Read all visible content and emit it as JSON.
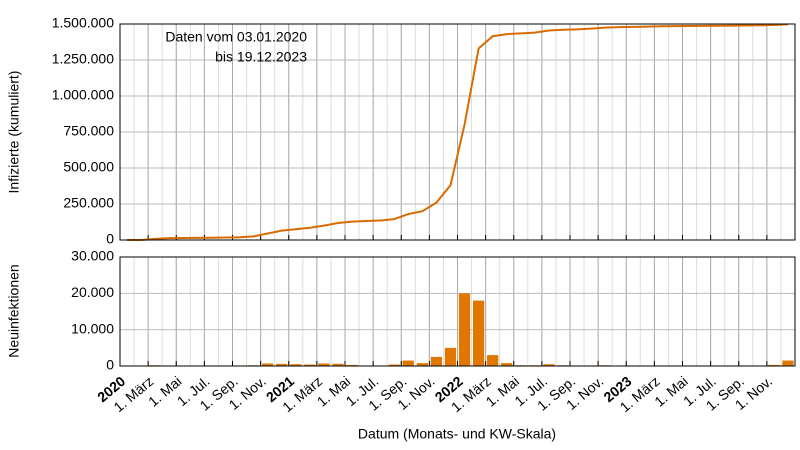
{
  "chart_data": [
    {
      "type": "line",
      "ylabel": "Infizierte (kumuliert)",
      "annotation": [
        "Daten vom 03.01.2020",
        "bis 19.12.2023"
      ],
      "categories": [
        "2020-01",
        "2020-02",
        "2020-03",
        "2020-04",
        "2020-05",
        "2020-06",
        "2020-07",
        "2020-08",
        "2020-09",
        "2020-10",
        "2020-11",
        "2020-12",
        "2021-01",
        "2021-02",
        "2021-03",
        "2021-04",
        "2021-05",
        "2021-06",
        "2021-07",
        "2021-08",
        "2021-09",
        "2021-10",
        "2021-11",
        "2021-12",
        "2022-01",
        "2022-02",
        "2022-03",
        "2022-04",
        "2022-05",
        "2022-06",
        "2022-07",
        "2022-08",
        "2022-09",
        "2022-10",
        "2022-11",
        "2022-12",
        "2023-01",
        "2023-02",
        "2023-03",
        "2023-04",
        "2023-05",
        "2023-06",
        "2023-07",
        "2023-08",
        "2023-09",
        "2023-10",
        "2023-11",
        "2023-12"
      ],
      "series": [
        {
          "name": "Infizierte",
          "color": "#d96c00",
          "values": [
            0,
            0,
            8000,
            13000,
            14000,
            15000,
            16000,
            17000,
            19000,
            25000,
            45000,
            65000,
            75000,
            85000,
            100000,
            118000,
            128000,
            132000,
            135000,
            145000,
            180000,
            200000,
            260000,
            380000,
            800000,
            1330000,
            1415000,
            1430000,
            1435000,
            1440000,
            1455000,
            1460000,
            1463000,
            1468000,
            1475000,
            1478000,
            1480000,
            1482000,
            1484000,
            1485000,
            1486000,
            1487000,
            1488000,
            1489000,
            1490000,
            1491000,
            1493000,
            1497000
          ]
        }
      ],
      "ylim": [
        0,
        1500000
      ],
      "yticks": [
        0,
        {
          "value": 250000,
          "label": "250.000"
        },
        {
          "value": 500000,
          "label": "500.000"
        },
        {
          "value": 750000,
          "label": "750.000"
        },
        {
          "value": 1000000,
          "label": "1.000.000"
        },
        {
          "value": 1250000,
          "label": "1.250.000"
        },
        {
          "value": 1500000,
          "label": "1.500.000"
        }
      ],
      "grid": true
    },
    {
      "type": "bar",
      "ylabel": "Neuinfektionen",
      "xlabel": "Datum (Monats- und KW-Skala)",
      "categories": [
        "2020-01",
        "2020-02",
        "2020-03",
        "2020-04",
        "2020-05",
        "2020-06",
        "2020-07",
        "2020-08",
        "2020-09",
        "2020-10",
        "2020-11",
        "2020-12",
        "2021-01",
        "2021-02",
        "2021-03",
        "2021-04",
        "2021-05",
        "2021-06",
        "2021-07",
        "2021-08",
        "2021-09",
        "2021-10",
        "2021-11",
        "2021-12",
        "2022-01",
        "2022-02",
        "2022-03",
        "2022-04",
        "2022-05",
        "2022-06",
        "2022-07",
        "2022-08",
        "2022-09",
        "2022-10",
        "2022-11",
        "2022-12",
        "2023-01",
        "2023-02",
        "2023-03",
        "2023-04",
        "2023-05",
        "2023-06",
        "2023-07",
        "2023-08",
        "2023-09",
        "2023-10",
        "2023-11",
        "2023-12"
      ],
      "series": [
        {
          "name": "Neuinfektionen",
          "color": "#e07800",
          "values": [
            0,
            0,
            200,
            150,
            30,
            30,
            40,
            50,
            80,
            200,
            700,
            600,
            500,
            400,
            700,
            600,
            300,
            100,
            100,
            400,
            1500,
            800,
            2500,
            5000,
            20000,
            18000,
            3000,
            800,
            200,
            200,
            500,
            200,
            100,
            150,
            200,
            100,
            50,
            50,
            50,
            30,
            30,
            20,
            20,
            30,
            50,
            100,
            300,
            1500
          ]
        }
      ],
      "ylim": [
        0,
        30000
      ],
      "yticks": [
        0,
        {
          "value": 10000,
          "label": "10.000"
        },
        {
          "value": 20000,
          "label": "20.000"
        },
        {
          "value": 30000,
          "label": "30.000"
        }
      ],
      "xticks": [
        {
          "value": "2020-01",
          "label": "2020"
        },
        {
          "value": "2020-03",
          "label": "1. März"
        },
        {
          "value": "2020-05",
          "label": "1. Mai"
        },
        {
          "value": "2020-07",
          "label": "1. Jul."
        },
        {
          "value": "2020-09",
          "label": "1. Sep."
        },
        {
          "value": "2020-11",
          "label": "1. Nov."
        },
        {
          "value": "2021-01",
          "label": "2021"
        },
        {
          "value": "2021-03",
          "label": "1. März"
        },
        {
          "value": "2021-05",
          "label": "1. Mai"
        },
        {
          "value": "2021-07",
          "label": "1. Jul."
        },
        {
          "value": "2021-09",
          "label": "1. Sep."
        },
        {
          "value": "2021-11",
          "label": "1. Nov."
        },
        {
          "value": "2022-01",
          "label": "2022"
        },
        {
          "value": "2022-03",
          "label": "1. März"
        },
        {
          "value": "2022-05",
          "label": "1. Mai"
        },
        {
          "value": "2022-07",
          "label": "1. Jul."
        },
        {
          "value": "2022-09",
          "label": "1. Sep."
        },
        {
          "value": "2022-11",
          "label": "1. Nov."
        },
        {
          "value": "2023-01",
          "label": "2023"
        },
        {
          "value": "2023-03",
          "label": "1. März"
        },
        {
          "value": "2023-05",
          "label": "1. Mai"
        },
        {
          "value": "2023-07",
          "label": "1. Jul."
        },
        {
          "value": "2023-09",
          "label": "1. Sep."
        },
        {
          "value": "2023-11",
          "label": "1. Nov."
        }
      ],
      "grid": true
    }
  ]
}
